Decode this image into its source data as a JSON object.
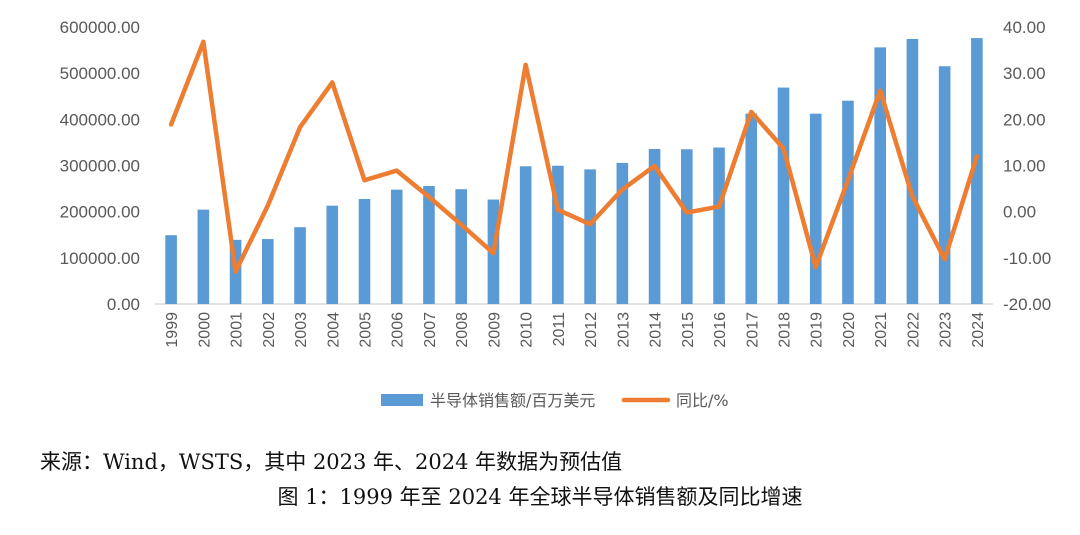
{
  "chart_data": {
    "type": "bar+line",
    "categories": [
      "1999",
      "2000",
      "2001",
      "2002",
      "2003",
      "2004",
      "2005",
      "2006",
      "2007",
      "2008",
      "2009",
      "2010",
      "2011",
      "2012",
      "2013",
      "2014",
      "2015",
      "2016",
      "2017",
      "2018",
      "2019",
      "2020",
      "2021",
      "2022",
      "2023",
      "2024"
    ],
    "series": [
      {
        "name": "半导体销售额/百万美元",
        "type": "bar",
        "axis": "left",
        "color": "#5B9BD5",
        "values": [
          149000,
          204400,
          139000,
          140700,
          166400,
          213000,
          227500,
          247700,
          255600,
          248600,
          226300,
          298300,
          299500,
          291600,
          305600,
          335800,
          335200,
          338900,
          412200,
          468800,
          412300,
          440400,
          555900,
          574100,
          515000,
          576000
        ]
      },
      {
        "name": "同比/%",
        "type": "line",
        "axis": "right",
        "color": "#ED7D31",
        "values": [
          18.9,
          36.8,
          -13.0,
          1.3,
          18.3,
          28.0,
          6.8,
          8.9,
          3.2,
          -2.8,
          -9.0,
          31.8,
          0.4,
          -2.7,
          4.8,
          9.9,
          -0.2,
          1.1,
          21.6,
          13.7,
          -12.0,
          6.8,
          26.2,
          3.3,
          -10.3,
          12.0
        ]
      }
    ],
    "y_left": {
      "min": 0,
      "max": 600000,
      "ticks": [
        "0.00",
        "100000.00",
        "200000.00",
        "300000.00",
        "400000.00",
        "500000.00",
        "600000.00"
      ]
    },
    "y_right": {
      "min": -20,
      "max": 40,
      "ticks": [
        "-20.00",
        "-10.00",
        "0.00",
        "10.00",
        "20.00",
        "30.00",
        "40.00"
      ]
    },
    "grid": false,
    "legend_position": "bottom"
  },
  "caption": {
    "source": "来源：Wind，WSTS，其中 2023 年、2024 年数据为预估值",
    "figure": "图 1：1999 年至 2024 年全球半导体销售额及同比增速"
  }
}
